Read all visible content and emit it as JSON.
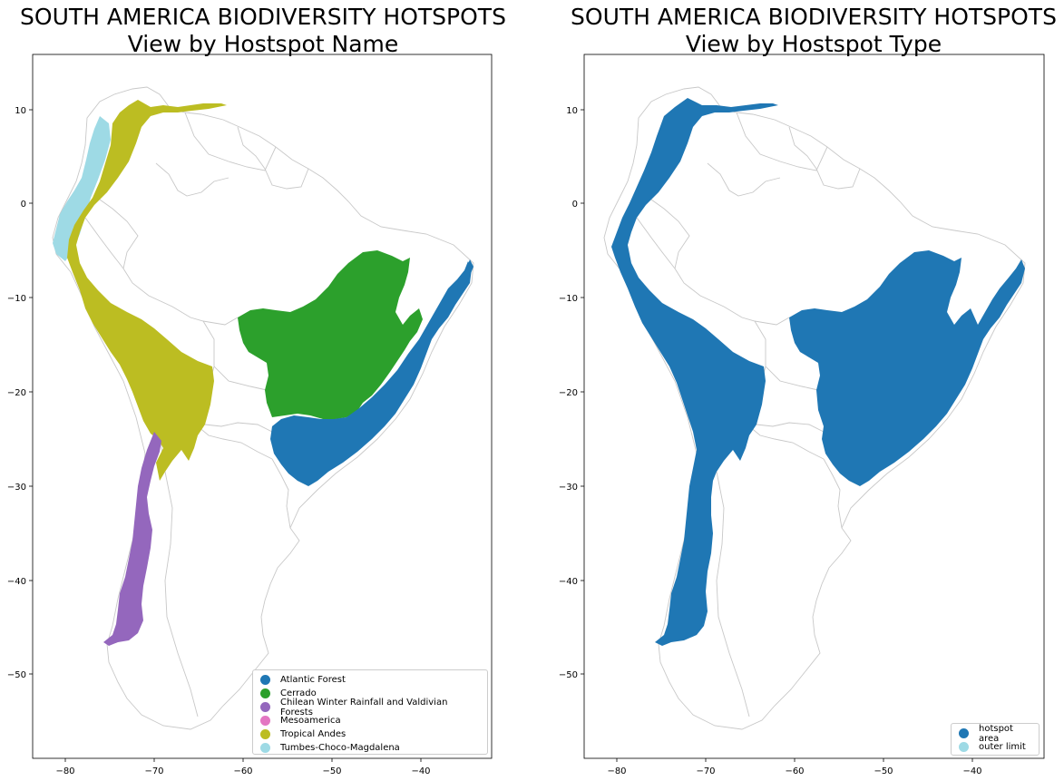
{
  "left_panel": {
    "title_line1": "SOUTH AMERICA BIODIVERSITY HOTSPOTS",
    "title_line2": "View by Hostspot Name",
    "legend": [
      {
        "label": "Atlantic Forest",
        "color": "#1f77b4"
      },
      {
        "label": "Cerrado",
        "color": "#2ca02c"
      },
      {
        "label": "Chilean Winter Rainfall and Valdivian Forests",
        "color": "#9467bd"
      },
      {
        "label": "Mesoamerica",
        "color": "#e377c2"
      },
      {
        "label": "Tropical Andes",
        "color": "#bcbd22"
      },
      {
        "label": "Tumbes-Choco-Magdalena",
        "color": "#9edae5"
      }
    ]
  },
  "right_panel": {
    "title_line1": "SOUTH AMERICA BIODIVERSITY HOTSPOTS",
    "title_line2": "View by Hostspot Type",
    "legend": [
      {
        "label": "hotspot area",
        "color": "#1f77b4"
      },
      {
        "label": "outer limit",
        "color": "#9edae5"
      }
    ]
  },
  "axes": {
    "x_ticks": [
      "−80",
      "−70",
      "−60",
      "−50",
      "−40"
    ],
    "y_ticks": [
      "10",
      "0",
      "−10",
      "−20",
      "−30",
      "−40",
      "−50"
    ]
  },
  "colors": {
    "country_border": "#c8c8c8",
    "hotspot_area": "#1f77b4"
  }
}
